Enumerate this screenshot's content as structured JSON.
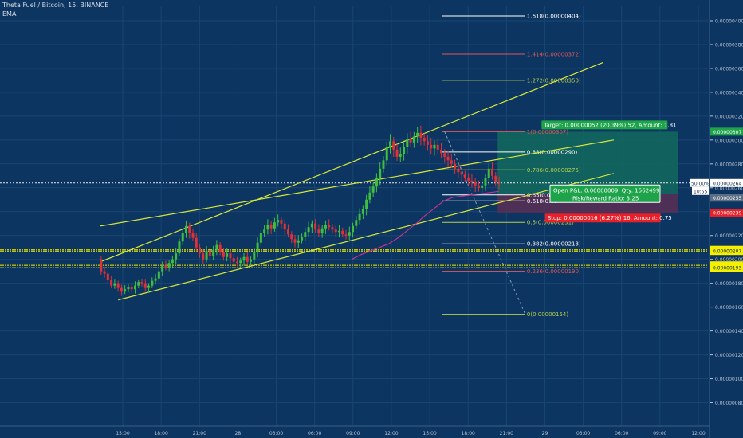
{
  "header": {
    "symbol": "Theta Fuel / Bitcoin, 15, BINANCE",
    "indicator": "EMA"
  },
  "colors": {
    "background": "#0d3561",
    "grid": "#184673",
    "candle_up": "#3fbf3f",
    "candle_down": "#e0303a",
    "channel": "#d8e83a",
    "ema": "#c2338f",
    "fib_white": "#ffffff",
    "fib_red": "#e05858",
    "fib_green": "#b7d04e",
    "target_zone": "#13695e",
    "stop_zone": "#5a2f55",
    "label_green": "#1ea34a",
    "label_red": "#e8202a",
    "label_yellow": "#f5f000",
    "axis_text": "#b9c3d0"
  },
  "chart_data": {
    "type": "candlestick",
    "title": "Theta Fuel / Bitcoin, 15, BINANCE",
    "indicators": [
      "EMA"
    ],
    "grid": true,
    "x_ticks": [
      "15:00",
      "18:00",
      "21:00",
      "28",
      "03:00",
      "06:00",
      "09:00",
      "12:00",
      "15:00",
      "18:00",
      "21:00",
      "29",
      "03:00",
      "06:00",
      "09:00",
      "12:00"
    ],
    "y_ticks": [
      "0.00000400",
      "0.00000380",
      "0.00000360",
      "0.00000340",
      "0.00000320",
      "0.00000300",
      "0.00000280",
      "0.00000260",
      "0.00000240",
      "0.00000220",
      "0.00000200",
      "0.00000180",
      "0.00000160",
      "0.00000140",
      "0.00000120",
      "0.00000100",
      "0.00000080"
    ],
    "ylim": [
      7.1e-07,
      4.08e-06
    ],
    "price_path": [
      2e-06,
      1.9e-06,
      1.88e-06,
      1.83e-06,
      1.78e-06,
      1.8e-06,
      1.76e-06,
      1.73e-06,
      1.75e-06,
      1.77e-06,
      1.75e-06,
      1.78e-06,
      1.81e-06,
      1.8e-06,
      1.76e-06,
      1.78e-06,
      1.82e-06,
      1.84e-06,
      1.9e-06,
      1.95e-06,
      1.93e-06,
      1.97e-06,
      2e-06,
      2.05e-06,
      2.15e-06,
      2.22e-06,
      2.28e-06,
      2.22e-06,
      2.18e-06,
      2.1e-06,
      2.05e-06,
      2e-06,
      2.07e-06,
      2.03e-06,
      2.08e-06,
      2.12e-06,
      2.06e-06,
      2.02e-06,
      2.05e-06,
      2.01e-06,
      1.98e-06,
      1.97e-06,
      1.99e-06,
      2.02e-06,
      1.98e-06,
      2e-06,
      2.06e-06,
      2.14e-06,
      2.22e-06,
      2.25e-06,
      2.29e-06,
      2.26e-06,
      2.31e-06,
      2.33e-06,
      2.3e-06,
      2.25e-06,
      2.21e-06,
      2.17e-06,
      2.14e-06,
      2.16e-06,
      2.19e-06,
      2.23e-06,
      2.27e-06,
      2.3e-06,
      2.25e-06,
      2.22e-06,
      2.26e-06,
      2.29e-06,
      2.27e-06,
      2.25e-06,
      2.23e-06,
      2.24e-06,
      2.21e-06,
      2.2e-06,
      2.23e-06,
      2.28e-06,
      2.33e-06,
      2.38e-06,
      2.42e-06,
      2.5e-06,
      2.56e-06,
      2.61e-06,
      2.68e-06,
      2.76e-06,
      2.83e-06,
      2.94e-06,
      2.99e-06,
      2.92e-06,
      2.86e-06,
      2.88e-06,
      2.94e-06,
      3.01e-06,
      2.98e-06,
      3.03e-06,
      3.06e-06,
      3.02e-06,
      2.99e-06,
      2.96e-06,
      2.93e-06,
      2.96e-06,
      2.92e-06,
      2.89e-06,
      2.86e-06,
      2.83e-06,
      2.8e-06,
      2.76e-06,
      2.73e-06,
      2.71e-06,
      2.68e-06,
      2.66e-06,
      2.65e-06,
      2.62e-06,
      2.6e-06,
      2.62e-06,
      2.68e-06,
      2.76e-06,
      2.7e-06,
      2.65e-06,
      2.64e-06
    ],
    "ema_path": [
      2e-06,
      2.04e-06,
      2.07e-06,
      2.1e-06,
      2.13e-06,
      2.18e-06,
      2.24e-06,
      2.3e-06,
      2.37e-06,
      2.43e-06,
      2.49e-06,
      2.52e-06,
      2.53e-06,
      2.54e-06,
      2.55e-06,
      2.56e-06,
      2.57e-06
    ],
    "channel": {
      "upper": [
        [
          1.98e-06,
          2.77e-06
        ],
        [
          2.98e-06,
          3.65e-06
        ]
      ],
      "middle": [
        [
          2.28e-06,
          3.06e-06
        ],
        [
          2.72e-06,
          3e-06
        ]
      ],
      "lower": [
        [
          1.66e-06,
          2.43e-06
        ],
        [
          2.19e-06,
          2.72e-06
        ]
      ]
    },
    "fib_levels": [
      {
        "level": "1.618",
        "value": "0.00000404",
        "label": "1.618(0.00000404)",
        "color": "white"
      },
      {
        "level": "1.414",
        "value": "0.00000372",
        "label": "1.414(0.00000372)",
        "color": "red"
      },
      {
        "level": "1.272",
        "value": "0.00000350",
        "label": "1.272(0.00000350)",
        "color": "green"
      },
      {
        "level": "1",
        "value": "0.00000307",
        "label": "1(0.00000307)",
        "color": "red"
      },
      {
        "level": "0.88",
        "value": "0.00000290",
        "label": "0.88(0.00000290)",
        "color": "white"
      },
      {
        "level": "0.786",
        "value": "0.00000275",
        "label": "0.786(0.00000275)",
        "color": "green"
      },
      {
        "level": "0.65",
        "value": "0.00000254",
        "label": "0.65(0.00",
        "color": "white"
      },
      {
        "level": "0.618",
        "value": "0.00000249",
        "label": "0.618(0.00",
        "color": "white"
      },
      {
        "level": "0.5",
        "value": "0.00000231",
        "label": "0.5(0.00000231)",
        "color": "green"
      },
      {
        "level": "0.382",
        "value": "0.00000213",
        "label": "0.382(0.00000213)",
        "color": "white"
      },
      {
        "level": "0.236",
        "value": "0.00000190",
        "label": "0.236(0.00000190)",
        "color": "red"
      },
      {
        "level": "0",
        "value": "0.00000154",
        "label": "0(0.00000154)",
        "color": "green"
      }
    ],
    "horizontal_levels": [
      "0.00000208",
      "0.00000207",
      "0.00000195",
      "0.00000193"
    ],
    "position": {
      "entry": "0.00000255",
      "target": "0.00000307",
      "stop": "0.00000239",
      "target_label": "Target: 0.00000052 (20.39%) 52, Amount: 1.81",
      "pnl_label": "Open P&L: 0.00000009, Qty: 1562499",
      "ratio_label": "Risk/Reward Ratio: 3.25",
      "stop_label": "Stop: 0.00000016 (6.27%) 16, Amount: 0.75"
    },
    "current_price": "0.00000264",
    "current_pct": "50.00%",
    "countdown": "10:55"
  }
}
